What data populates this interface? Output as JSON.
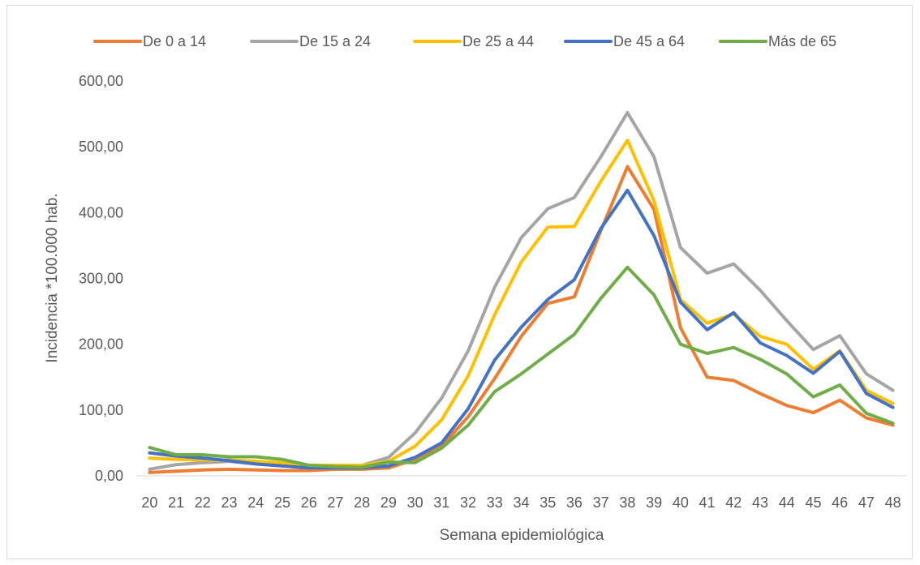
{
  "chart_data": {
    "type": "line",
    "title": "",
    "xlabel": "Semana epidemiológica",
    "ylabel": "Incidencia *100.000 hab.",
    "ylim": [
      0,
      600
    ],
    "yticks": [
      "0,00",
      "100,00",
      "200,00",
      "300,00",
      "400,00",
      "500,00",
      "600,00"
    ],
    "ytick_values": [
      0,
      100,
      200,
      300,
      400,
      500,
      600
    ],
    "grid": false,
    "legend_position": "top",
    "x": [
      "20",
      "21",
      "22",
      "23",
      "24",
      "25",
      "26",
      "27",
      "28",
      "29",
      "30",
      "31",
      "32",
      "33",
      "34",
      "35",
      "36",
      "37",
      "38",
      "39",
      "40",
      "41",
      "42",
      "43",
      "44",
      "45",
      "46",
      "47",
      "48"
    ],
    "series": [
      {
        "name": "De 0 a 14",
        "color": "#ED7D31",
        "values": [
          5,
          7,
          9,
          10,
          9,
          8,
          8,
          10,
          10,
          12,
          25,
          45,
          90,
          148,
          212,
          262,
          272,
          373,
          470,
          405,
          225,
          150,
          145,
          125,
          107,
          96,
          115,
          88,
          77
        ]
      },
      {
        "name": "De 15 a 24",
        "color": "#A5A5A5",
        "values": [
          10,
          17,
          20,
          22,
          18,
          15,
          13,
          14,
          16,
          28,
          65,
          118,
          190,
          287,
          362,
          406,
          423,
          485,
          552,
          485,
          347,
          308,
          322,
          282,
          236,
          192,
          213,
          155,
          130
        ]
      },
      {
        "name": "De 25 a 44",
        "color": "#FFC000",
        "values": [
          27,
          25,
          24,
          24,
          22,
          20,
          16,
          16,
          16,
          22,
          45,
          85,
          152,
          245,
          325,
          378,
          379,
          448,
          510,
          418,
          268,
          232,
          246,
          212,
          200,
          162,
          190,
          130,
          110
        ]
      },
      {
        "name": "De 45 a 64",
        "color": "#4472C4",
        "values": [
          35,
          30,
          27,
          23,
          18,
          15,
          12,
          12,
          12,
          15,
          28,
          50,
          102,
          176,
          226,
          268,
          298,
          376,
          434,
          365,
          264,
          222,
          248,
          202,
          183,
          156,
          189,
          125,
          104
        ]
      },
      {
        "name": "Más de 65",
        "color": "#70AD47",
        "values": [
          43,
          32,
          32,
          29,
          29,
          25,
          16,
          14,
          13,
          21,
          20,
          42,
          77,
          128,
          155,
          185,
          215,
          270,
          317,
          275,
          200,
          186,
          195,
          177,
          155,
          120,
          138,
          95,
          80
        ]
      }
    ]
  }
}
